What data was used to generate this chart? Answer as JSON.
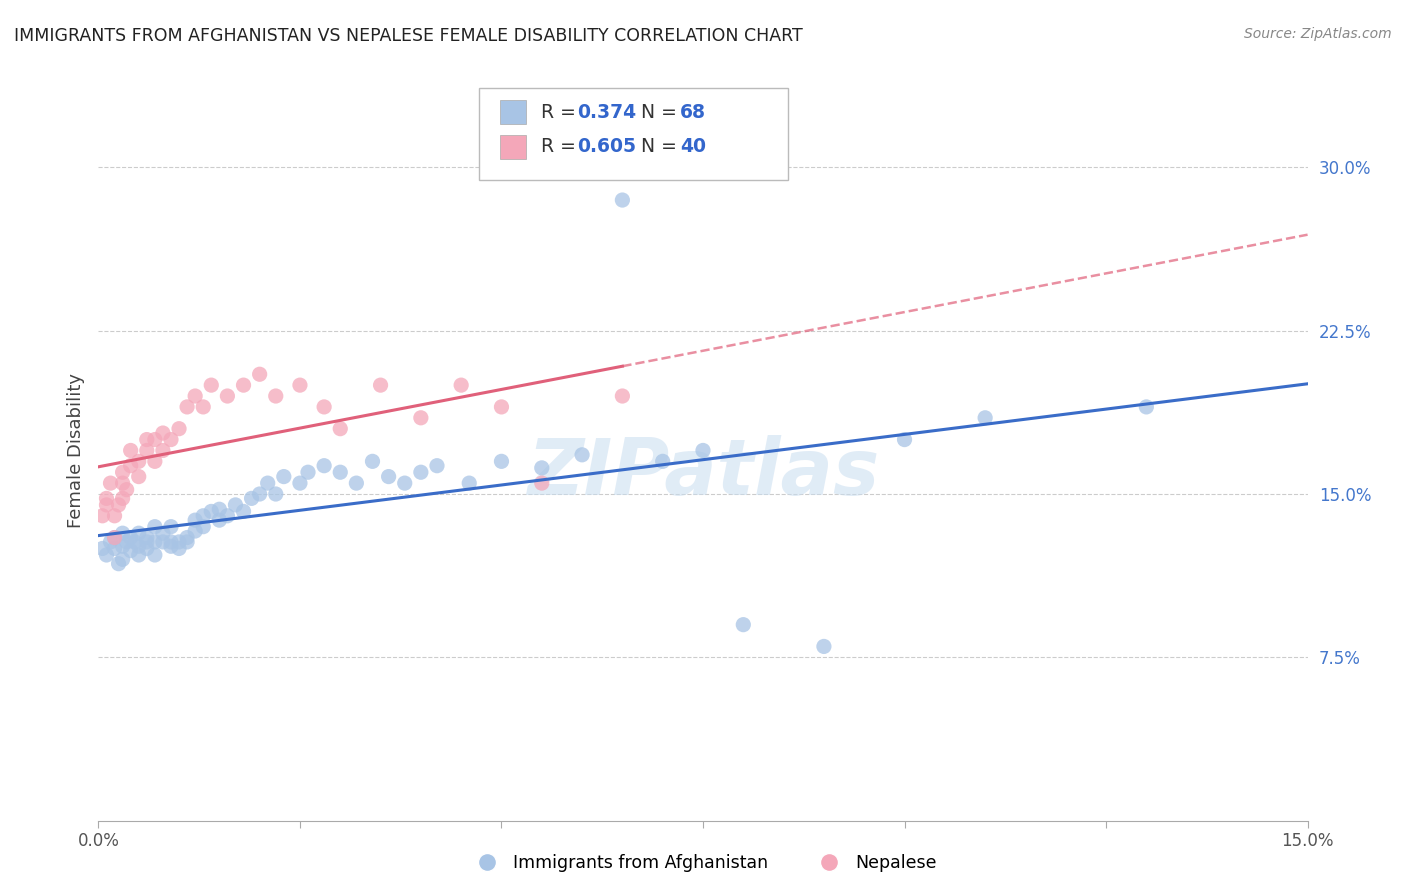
{
  "title": "IMMIGRANTS FROM AFGHANISTAN VS NEPALESE FEMALE DISABILITY CORRELATION CHART",
  "source": "Source: ZipAtlas.com",
  "ylabel": "Female Disability",
  "right_yticks": [
    "30.0%",
    "22.5%",
    "15.0%",
    "7.5%"
  ],
  "right_ytick_vals": [
    0.3,
    0.225,
    0.15,
    0.075
  ],
  "xlim": [
    0.0,
    0.15
  ],
  "ylim": [
    0.0,
    0.34
  ],
  "afghanistan_color": "#a8c4e5",
  "nepalese_color": "#f4a7b9",
  "trendline1_color": "#3a6cc8",
  "trendline2_color": "#e0607a",
  "watermark": "ZIPatlas",
  "afghanistan_x": [
    0.0005,
    0.001,
    0.0015,
    0.002,
    0.002,
    0.0025,
    0.003,
    0.003,
    0.003,
    0.0035,
    0.004,
    0.004,
    0.0045,
    0.005,
    0.005,
    0.005,
    0.006,
    0.006,
    0.006,
    0.007,
    0.007,
    0.007,
    0.008,
    0.008,
    0.009,
    0.009,
    0.009,
    0.01,
    0.01,
    0.011,
    0.011,
    0.012,
    0.012,
    0.013,
    0.013,
    0.014,
    0.015,
    0.015,
    0.016,
    0.017,
    0.018,
    0.019,
    0.02,
    0.021,
    0.022,
    0.023,
    0.025,
    0.026,
    0.028,
    0.03,
    0.032,
    0.034,
    0.036,
    0.038,
    0.04,
    0.042,
    0.046,
    0.05,
    0.055,
    0.06,
    0.065,
    0.07,
    0.075,
    0.08,
    0.09,
    0.1,
    0.11,
    0.13
  ],
  "afghanistan_y": [
    0.125,
    0.122,
    0.128,
    0.125,
    0.13,
    0.118,
    0.12,
    0.126,
    0.132,
    0.128,
    0.124,
    0.13,
    0.128,
    0.122,
    0.126,
    0.132,
    0.13,
    0.125,
    0.128,
    0.122,
    0.128,
    0.135,
    0.128,
    0.132,
    0.126,
    0.128,
    0.135,
    0.128,
    0.125,
    0.13,
    0.128,
    0.133,
    0.138,
    0.14,
    0.135,
    0.142,
    0.138,
    0.143,
    0.14,
    0.145,
    0.142,
    0.148,
    0.15,
    0.155,
    0.15,
    0.158,
    0.155,
    0.16,
    0.163,
    0.16,
    0.155,
    0.165,
    0.158,
    0.155,
    0.16,
    0.163,
    0.155,
    0.165,
    0.162,
    0.168,
    0.285,
    0.165,
    0.17,
    0.09,
    0.08,
    0.175,
    0.185,
    0.19
  ],
  "nepalese_x": [
    0.0005,
    0.001,
    0.001,
    0.0015,
    0.002,
    0.002,
    0.0025,
    0.003,
    0.003,
    0.003,
    0.0035,
    0.004,
    0.004,
    0.005,
    0.005,
    0.006,
    0.006,
    0.007,
    0.007,
    0.008,
    0.008,
    0.009,
    0.01,
    0.011,
    0.012,
    0.013,
    0.014,
    0.016,
    0.018,
    0.02,
    0.022,
    0.025,
    0.028,
    0.03,
    0.035,
    0.04,
    0.045,
    0.05,
    0.055,
    0.065
  ],
  "nepalese_y": [
    0.14,
    0.145,
    0.148,
    0.155,
    0.13,
    0.14,
    0.145,
    0.155,
    0.148,
    0.16,
    0.152,
    0.163,
    0.17,
    0.158,
    0.165,
    0.175,
    0.17,
    0.165,
    0.175,
    0.17,
    0.178,
    0.175,
    0.18,
    0.19,
    0.195,
    0.19,
    0.2,
    0.195,
    0.2,
    0.205,
    0.195,
    0.2,
    0.19,
    0.18,
    0.2,
    0.185,
    0.2,
    0.19,
    0.155,
    0.195
  ]
}
